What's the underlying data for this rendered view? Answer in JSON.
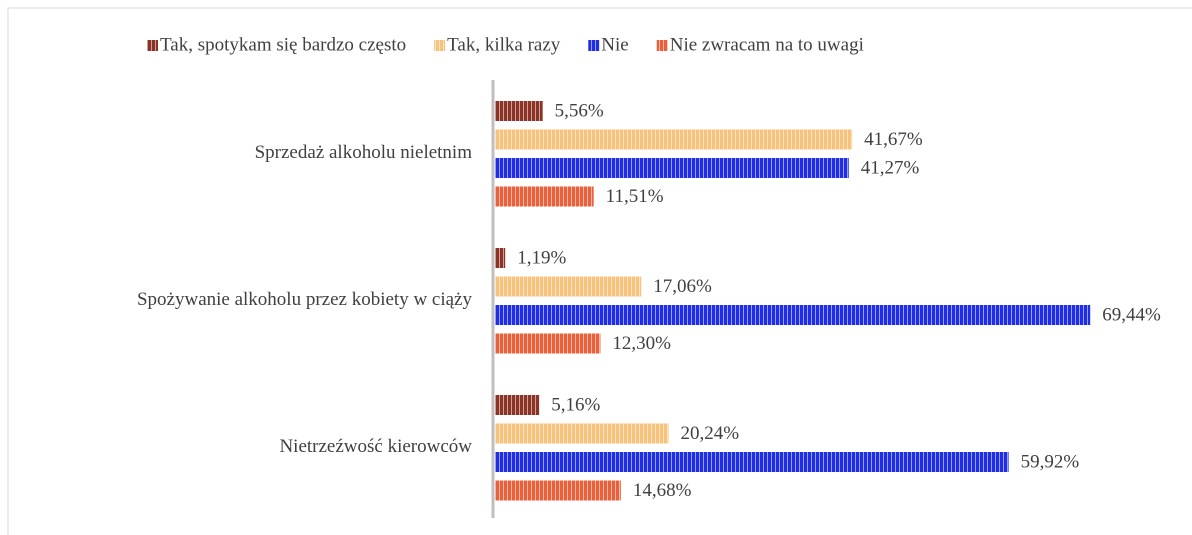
{
  "chart_data": {
    "type": "barh",
    "categories": [
      "Sprzedaż alkoholu nieletnim",
      "Spożywanie alkoholu przez kobiety w ciąży",
      "Nietrzeźwość kierowców"
    ],
    "series": [
      {
        "name": "Tak, spotykam się bardzo często",
        "color": "#8b3324",
        "values": [
          5.56,
          1.19,
          5.16
        ],
        "value_labels": [
          "5,56%",
          "1,19%",
          "5,16%"
        ]
      },
      {
        "name": "Tak, kilka razy",
        "color": "#f7c27a",
        "values": [
          41.67,
          17.06,
          20.24
        ],
        "value_labels": [
          "41,67%",
          "17,06%",
          "20,24%"
        ]
      },
      {
        "name": "Nie",
        "color": "#1f2de6",
        "values": [
          41.27,
          69.44,
          59.92
        ],
        "value_labels": [
          "41,27%",
          "69,44%",
          "59,92%"
        ]
      },
      {
        "name": "Nie zwracam na to uwagi",
        "color": "#e8613a",
        "values": [
          11.51,
          12.3,
          14.68
        ],
        "value_labels": [
          "11,51%",
          "12,30%",
          "14,68%"
        ]
      }
    ],
    "xlim": [
      0,
      70
    ],
    "legend": "top"
  }
}
